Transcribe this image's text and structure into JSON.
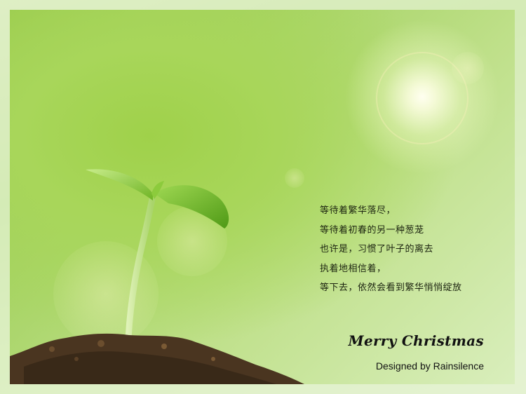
{
  "poem": {
    "lines": [
      "等待着繁华落尽，",
      "等待着初春的另一种葱茏",
      "也许是，习惯了叶子的离去",
      "执着地相信着，",
      "等下去，依然会看到繁华悄悄绽放"
    ]
  },
  "greeting": "Merry Christmas",
  "credit": "Designed by Rainsilence",
  "colors": {
    "background": "#b9dd88",
    "text": "#1c2410",
    "leaf": "#7fbf2e",
    "soil": "#4a3520"
  },
  "icons": [
    "sprout",
    "sun-flare",
    "soil"
  ]
}
